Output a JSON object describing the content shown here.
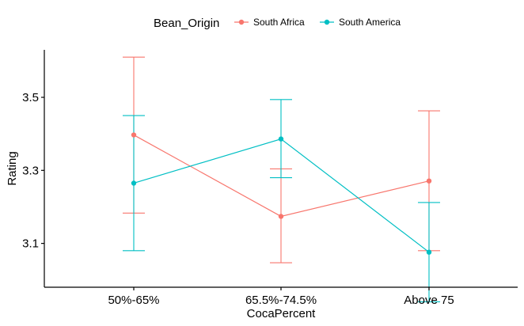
{
  "chart_data": {
    "type": "line",
    "xlabel": "CocaPercent",
    "ylabel": "Rating",
    "categories": [
      "50%-65%",
      "65.5%-74.5%",
      "Above 75"
    ],
    "ylim": [
      2.98,
      3.63
    ],
    "yticks": [
      3.1,
      3.3,
      3.5
    ],
    "ytick_labels": [
      "3.1",
      "3.3",
      "3.5"
    ],
    "grid": false,
    "legend": {
      "title": "Bean_Origin",
      "position": "top"
    },
    "series": [
      {
        "name": "South Africa",
        "color": "#F8766D",
        "values": [
          3.397,
          3.174,
          3.271
        ],
        "lower": [
          3.183,
          3.047,
          3.08
        ],
        "upper": [
          3.61,
          3.304,
          3.463
        ]
      },
      {
        "name": "South America",
        "color": "#00BFC4",
        "values": [
          3.265,
          3.386,
          3.076
        ],
        "lower": [
          3.08,
          3.28,
          2.94
        ],
        "upper": [
          3.45,
          3.494,
          3.212
        ]
      }
    ]
  }
}
